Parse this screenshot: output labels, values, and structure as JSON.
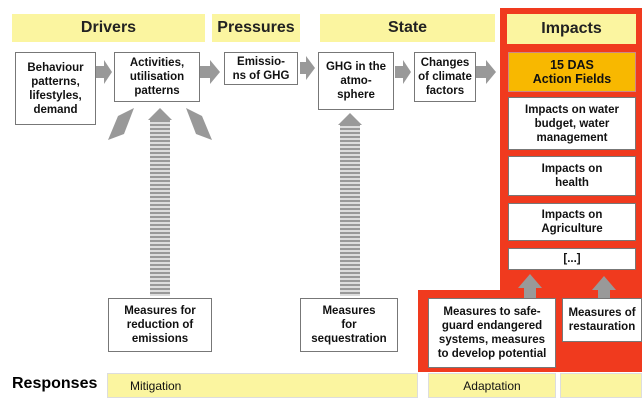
{
  "headers": [
    "Drivers",
    "Pressures",
    "State",
    "Impacts"
  ],
  "chain": [
    [
      "Behaviour",
      "patterns,",
      "lifestyles,",
      "demand"
    ],
    [
      "Activities,",
      "utilisation",
      "patterns"
    ],
    [
      "Emissio-",
      "ns of GHG"
    ],
    [
      "GHG in the",
      "atmo-",
      "sphere"
    ],
    [
      "Changes",
      "of climate",
      "factors"
    ]
  ],
  "impacts": [
    [
      "15 DAS",
      "Action Fields"
    ],
    [
      "Impacts on water",
      "budget, water",
      "management"
    ],
    [
      "Impacts on",
      "health"
    ],
    [
      "Impacts on",
      "Agriculture"
    ],
    [
      "[...]"
    ]
  ],
  "measures": [
    [
      "Measures for",
      "reduction of",
      "emissions"
    ],
    [
      "Measures",
      "for",
      "sequestration"
    ],
    [
      "Measures to safe-",
      "guard endangered",
      "systems, measures",
      "to develop potential"
    ],
    [
      "Measures of",
      "restauration"
    ]
  ],
  "responses": {
    "title": "Responses",
    "mitigation": "Mitigation",
    "adaptation": "Adaptation"
  }
}
